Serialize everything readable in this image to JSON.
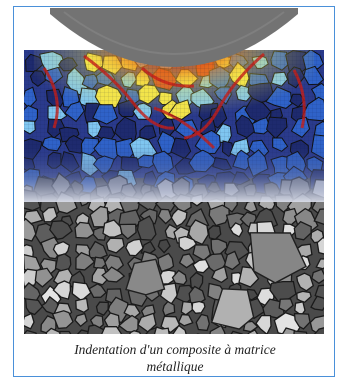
{
  "figure": {
    "alt": "Simulation d'indentation d'un composite à matrice métallique",
    "indenter_color": "#707070",
    "heatmap_colors": [
      "#1e2a6e",
      "#2f62c8",
      "#7fc6f0",
      "#f2e44a",
      "#ee8a22",
      "#c81e16"
    ],
    "grain_gray_range": [
      "#3a3a3a",
      "#dcdcdc"
    ]
  },
  "caption": {
    "line1": "Indentation d'un composite à matrice",
    "line2": "métallique"
  }
}
